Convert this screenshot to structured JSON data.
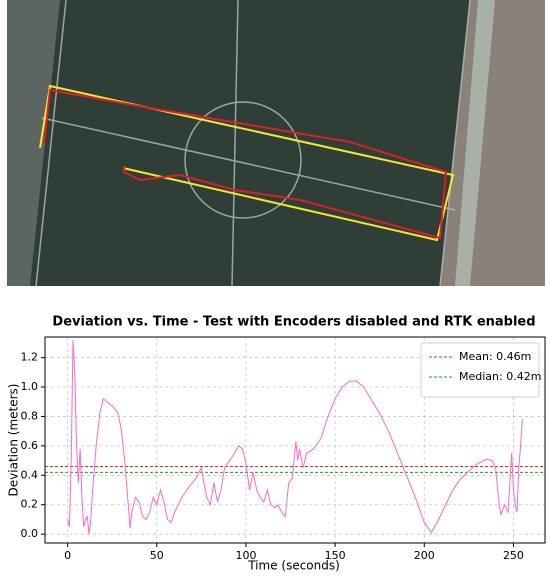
{
  "chart_data": {
    "type": "line",
    "title": "Deviation vs. Time - Test with Encoders disabled and RTK enabled",
    "x_label": "Time (seconds)",
    "y_label": "Deviation (meters)",
    "x": [
      0,
      1,
      2,
      3,
      4,
      5,
      6,
      7,
      8,
      9,
      10,
      11,
      12,
      13,
      14,
      16,
      18,
      20,
      22,
      25,
      28,
      30,
      32,
      33,
      34,
      35,
      36,
      38,
      40,
      42,
      44,
      46,
      48,
      50,
      52,
      54,
      56,
      58,
      60,
      64,
      68,
      72,
      75,
      76,
      78,
      80,
      82,
      84,
      86,
      88,
      92,
      96,
      98,
      100,
      102,
      104,
      106,
      108,
      110,
      112,
      114,
      116,
      118,
      120,
      122,
      124,
      126,
      128,
      129,
      130,
      132,
      134,
      138,
      142,
      146,
      150,
      154,
      158,
      162,
      166,
      170,
      175,
      180,
      185,
      190,
      195,
      200,
      204,
      208,
      212,
      216,
      220,
      225,
      230,
      235,
      238,
      240,
      242,
      243,
      245,
      247,
      249,
      250,
      251,
      252,
      253,
      254,
      255
    ],
    "series": [
      {
        "name": "Deviation",
        "color": "#ff69c8",
        "values": [
          0.1,
          0.05,
          0.5,
          1.32,
          1.1,
          0.6,
          0.35,
          0.58,
          0.25,
          0.05,
          0.1,
          0.12,
          0.0,
          0.1,
          0.3,
          0.6,
          0.82,
          0.92,
          0.9,
          0.87,
          0.83,
          0.72,
          0.5,
          0.35,
          0.2,
          0.04,
          0.15,
          0.25,
          0.22,
          0.12,
          0.1,
          0.15,
          0.25,
          0.2,
          0.3,
          0.22,
          0.1,
          0.08,
          0.15,
          0.25,
          0.32,
          0.38,
          0.45,
          0.38,
          0.25,
          0.2,
          0.35,
          0.22,
          0.3,
          0.45,
          0.52,
          0.6,
          0.58,
          0.48,
          0.3,
          0.42,
          0.3,
          0.25,
          0.22,
          0.3,
          0.2,
          0.18,
          0.2,
          0.15,
          0.12,
          0.35,
          0.38,
          0.63,
          0.5,
          0.58,
          0.45,
          0.55,
          0.58,
          0.65,
          0.8,
          0.92,
          1.0,
          1.04,
          1.04,
          1.0,
          0.92,
          0.82,
          0.7,
          0.55,
          0.4,
          0.25,
          0.08,
          0.01,
          0.1,
          0.2,
          0.3,
          0.37,
          0.43,
          0.48,
          0.51,
          0.5,
          0.45,
          0.2,
          0.13,
          0.2,
          0.15,
          0.55,
          0.3,
          0.2,
          0.15,
          0.45,
          0.6,
          0.78
        ]
      }
    ],
    "reference_lines": [
      {
        "name": "Mean: 0.46m",
        "value": 0.46,
        "color": "#e8302a"
      },
      {
        "name": "Median: 0.42m",
        "value": 0.42,
        "color": "#1aa31a"
      }
    ],
    "xlim": [
      -12.7,
      267.7
    ],
    "ylim": [
      -0.06,
      1.34
    ],
    "xticks": [
      0,
      50,
      100,
      150,
      200,
      250
    ],
    "yticks": [
      {
        "value": 0,
        "label": "0.0"
      },
      0.2,
      0.4,
      0.6,
      0.8,
      {
        "value": 1,
        "label": "1.0"
      },
      1.2
    ],
    "grid": true,
    "legend": "upper right"
  }
}
